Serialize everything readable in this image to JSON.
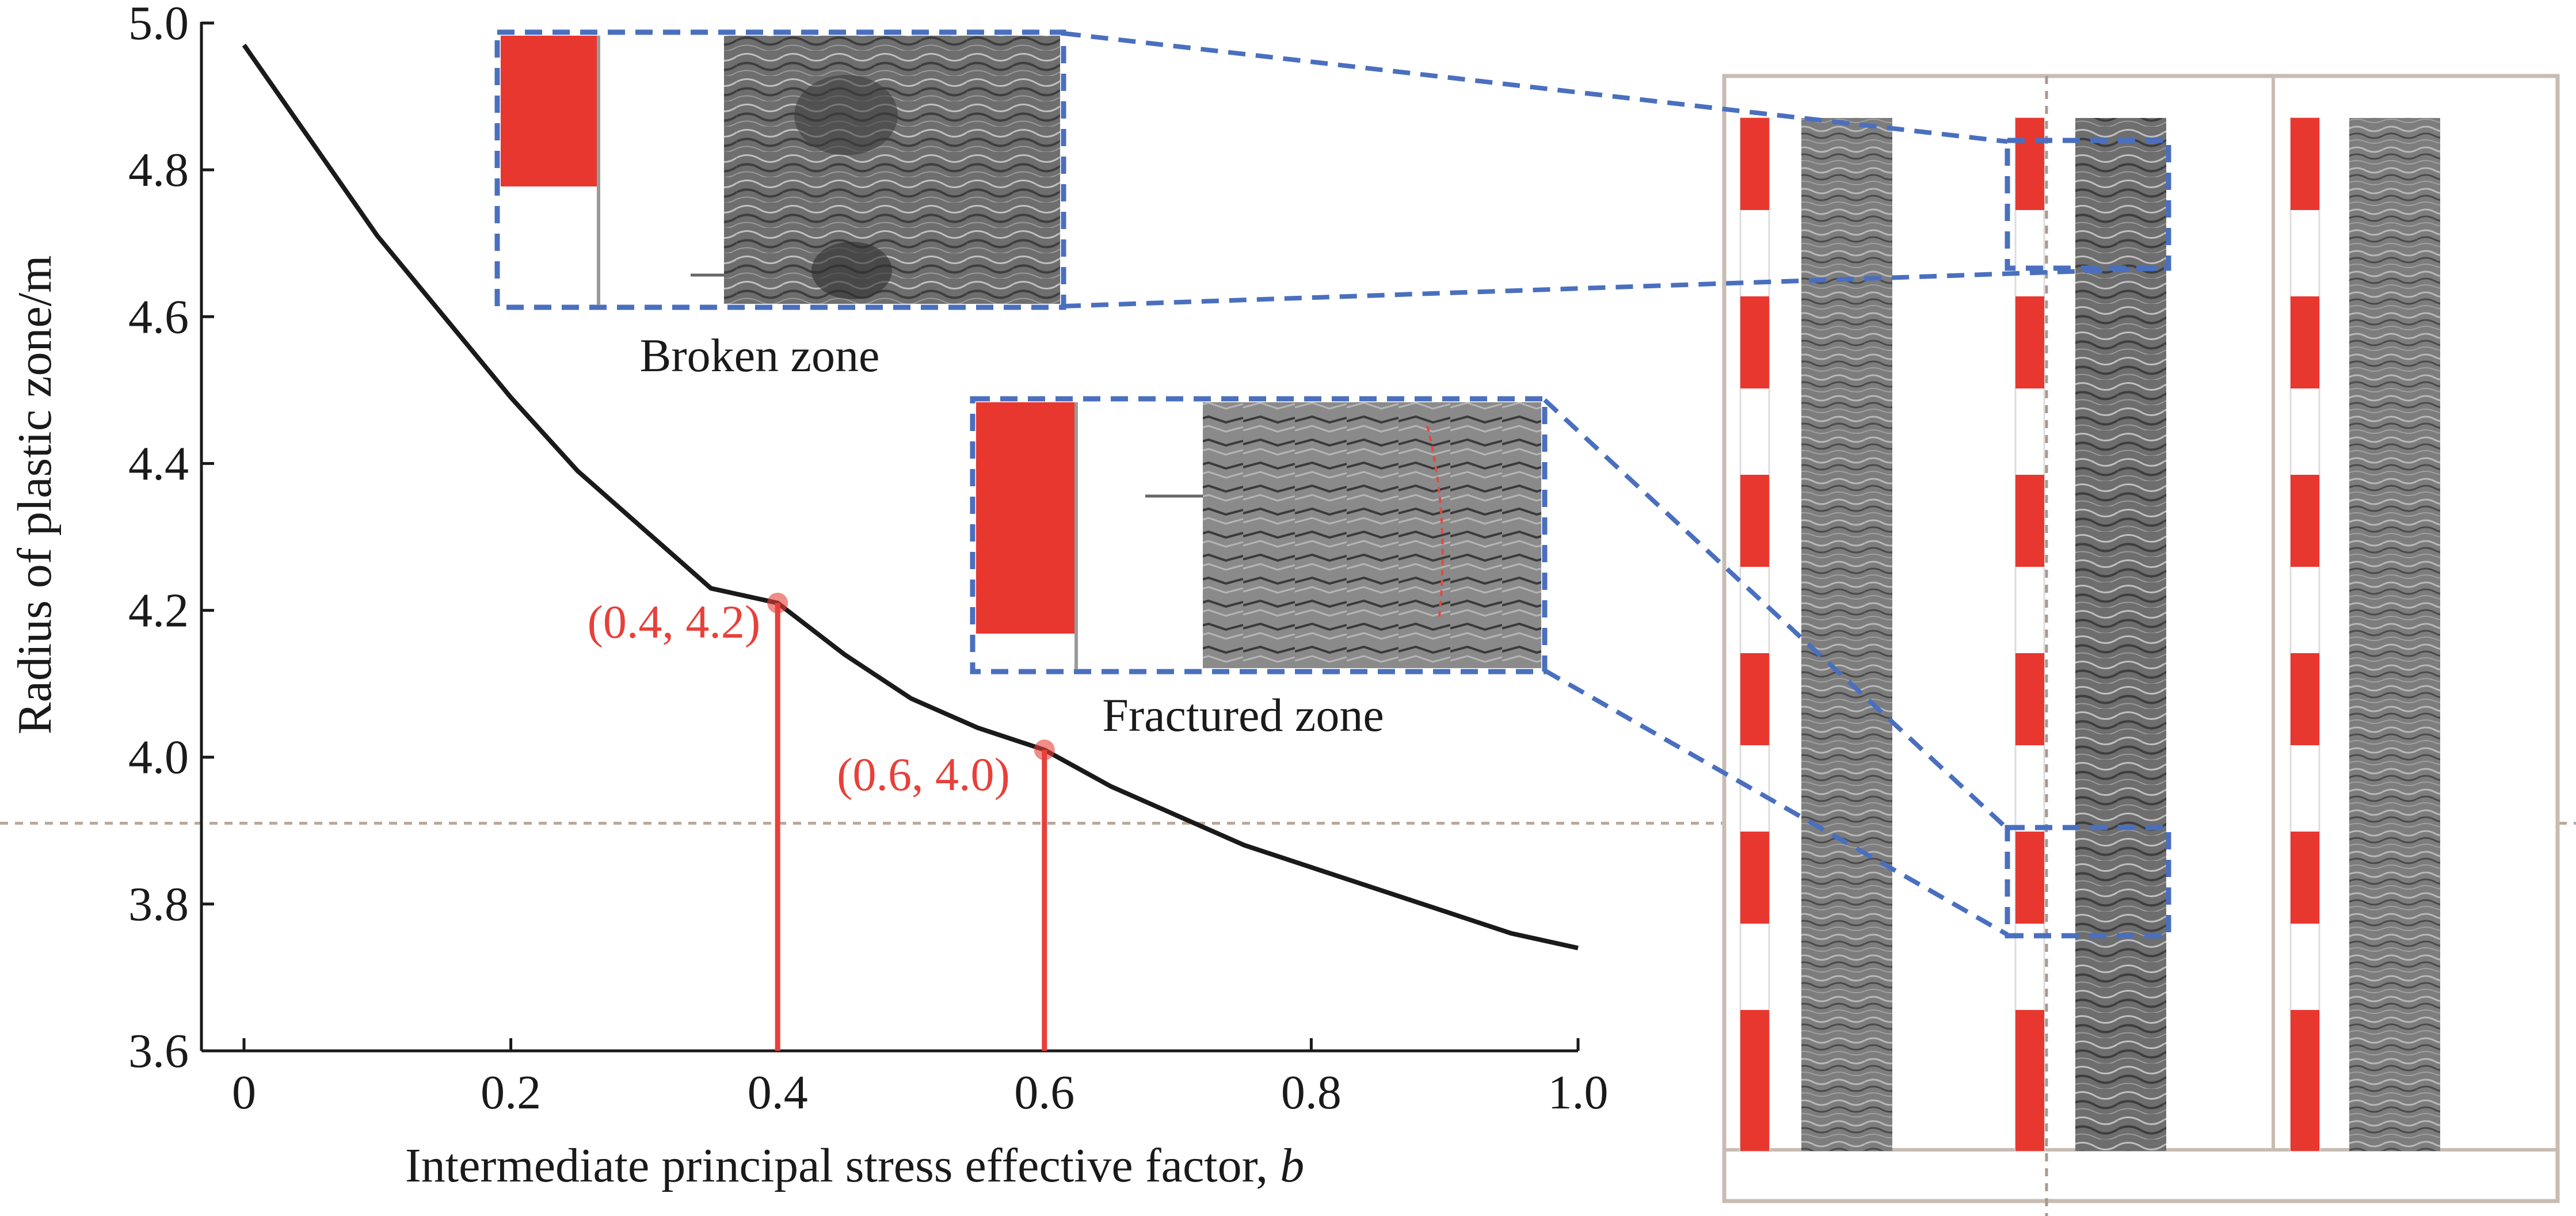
{
  "chart_data": {
    "type": "line",
    "title": "",
    "xlabel": "Intermediate principal stress effective factor, ",
    "xlabel_var": "b",
    "ylabel": "Radius of plastic zone/m",
    "xlim": [
      0,
      1.0
    ],
    "ylim": [
      3.6,
      5.0
    ],
    "x_ticks": [
      "0",
      "0.2",
      "0.4",
      "0.6",
      "0.8",
      "1.0"
    ],
    "y_ticks": [
      "3.6",
      "3.8",
      "4.0",
      "4.2",
      "4.4",
      "4.6",
      "4.8",
      "5.0"
    ],
    "grid": false,
    "series": [
      {
        "x": [
          0,
          0.05,
          0.1,
          0.15,
          0.2,
          0.25,
          0.3,
          0.35,
          0.4,
          0.45,
          0.5,
          0.55,
          0.6,
          0.65,
          0.7,
          0.75,
          0.8,
          0.85,
          0.9,
          0.95,
          1.0
        ],
        "y": [
          4.97,
          4.84,
          4.71,
          4.6,
          4.49,
          4.39,
          4.31,
          4.23,
          4.21,
          4.14,
          4.08,
          4.04,
          4.01,
          3.96,
          3.92,
          3.88,
          3.85,
          3.82,
          3.79,
          3.76,
          3.74
        ],
        "color": "#1a1a1a"
      }
    ],
    "highlight_points": [
      {
        "x": 0.4,
        "y": 4.21,
        "label": "(0.4, 4.2)"
      },
      {
        "x": 0.6,
        "y": 4.01,
        "label": "(0.6, 4.0)"
      }
    ],
    "reference_line_y": 3.91,
    "annotations": [
      "Broken zone",
      "Fractured zone"
    ]
  },
  "colors": {
    "curve": "#1a1a1a",
    "highlight": "#e8403a",
    "dashed_box": "#4a6fbf",
    "reference_line": "#b9a89c",
    "core_frame": "#c8bcb2"
  }
}
